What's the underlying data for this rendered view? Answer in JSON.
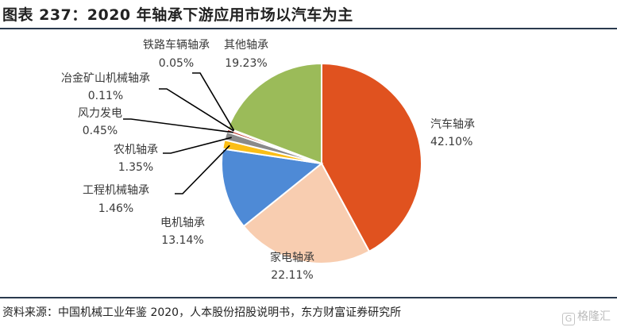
{
  "title": "图表 237：2020 年轴承下游应用市场以汽车为主",
  "source": "资料来源：中国机械工业年鉴 2020，人本股份招股说明书，东方财富证券研究所",
  "watermark": {
    "icon": "gelonghui-logo-icon",
    "text": "格隆汇"
  },
  "chart_data": {
    "type": "pie",
    "title": "",
    "start_angle_deg": 0,
    "direction": "clockwise",
    "slices": [
      {
        "name": "汽车轴承",
        "value": 42.1,
        "label": "42.10%",
        "color": "#e0521f"
      },
      {
        "name": "家电轴承",
        "value": 22.11,
        "label": "22.11%",
        "color": "#f8cdb0"
      },
      {
        "name": "电机轴承",
        "value": 13.14,
        "label": "13.14%",
        "color": "#4e8ad6"
      },
      {
        "name": "工程机械轴承",
        "value": 1.46,
        "label": "1.46%",
        "color": "#fbbe16"
      },
      {
        "name": "农机轴承",
        "value": 1.35,
        "label": "1.35%",
        "color": "#8a8a8a"
      },
      {
        "name": "风力发电",
        "value": 0.45,
        "label": "0.45%",
        "color": "#c03a2b"
      },
      {
        "name": "冶金矿山机械轴承",
        "value": 0.11,
        "label": "0.11%",
        "color": "#7a4a2a"
      },
      {
        "name": "铁路车辆轴承",
        "value": 0.05,
        "label": "0.05%",
        "color": "#2e4e7e"
      },
      {
        "name": "其他轴承",
        "value": 19.23,
        "label": "19.23%",
        "color": "#9bbb59"
      }
    ]
  }
}
